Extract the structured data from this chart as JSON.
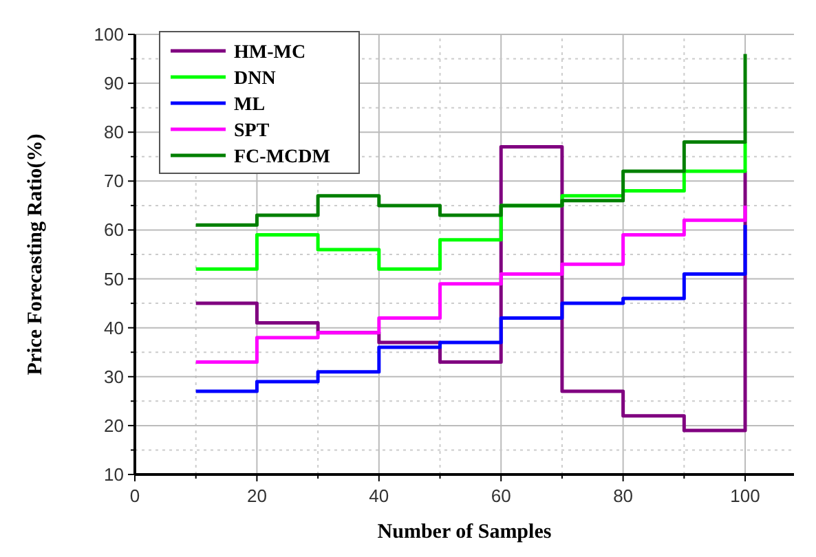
{
  "chart_data": {
    "type": "step",
    "xlabel": "Number of Samples",
    "ylabel": "Price Forecasting Ratio(%)",
    "x": [
      10,
      20,
      30,
      40,
      50,
      60,
      70,
      80,
      90,
      100
    ],
    "series": [
      {
        "name": "HM-MC",
        "color": "#800080",
        "values": [
          45,
          41,
          39,
          37,
          33,
          77,
          27,
          22,
          19,
          72
        ]
      },
      {
        "name": "DNN",
        "color": "#00ff00",
        "values": [
          52,
          59,
          56,
          52,
          58,
          65,
          67,
          68,
          72,
          78
        ]
      },
      {
        "name": "ML",
        "color": "#0000ff",
        "values": [
          27,
          29,
          31,
          36,
          37,
          42,
          45,
          46,
          51,
          61
        ]
      },
      {
        "name": "SPT",
        "color": "#ff00ff",
        "values": [
          33,
          38,
          39,
          42,
          49,
          51,
          53,
          59,
          62,
          65
        ]
      },
      {
        "name": "FC-MCDM",
        "color": "#008000",
        "values": [
          61,
          63,
          67,
          65,
          63,
          65,
          66,
          72,
          78,
          96
        ]
      }
    ],
    "xlim": [
      0,
      108
    ],
    "xticks": [
      0,
      20,
      40,
      60,
      80,
      100
    ],
    "ylim": [
      10,
      100
    ],
    "yticks": [
      10,
      20,
      30,
      40,
      50,
      60,
      70,
      80,
      90,
      100
    ],
    "grid": true,
    "legend": "top left",
    "line_style": "solid"
  }
}
